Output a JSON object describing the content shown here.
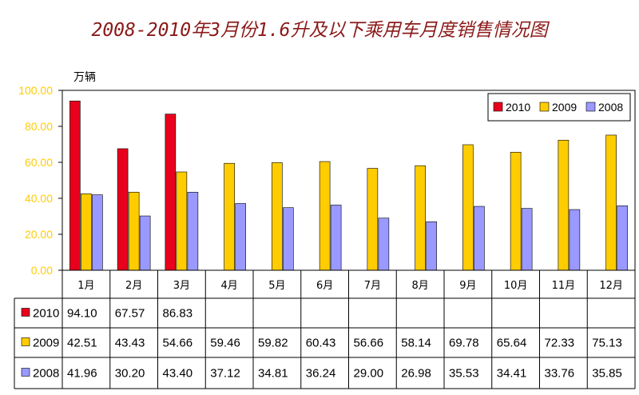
{
  "title": "2008-2010年3月份1.6升及以下乘用车月度销售情况图",
  "chart_data": {
    "type": "bar",
    "title": "2008-2010年3月份1.6升及以下乘用车月度销售情况图",
    "ylabel": "万辆",
    "xlabel": "",
    "ylim": [
      0,
      100
    ],
    "yticks": [
      "0.00",
      "20.00",
      "40.00",
      "60.00",
      "80.00",
      "100.00"
    ],
    "grid": false,
    "legend_position": "top-right",
    "categories": [
      "1月",
      "2月",
      "3月",
      "4月",
      "5月",
      "6月",
      "7月",
      "8月",
      "9月",
      "10月",
      "11月",
      "12月"
    ],
    "series": [
      {
        "name": "2010",
        "color": "#E8001C",
        "values": [
          94.1,
          67.57,
          86.83,
          null,
          null,
          null,
          null,
          null,
          null,
          null,
          null,
          null
        ],
        "labels": [
          "94.10",
          "67.57",
          "86.83",
          "",
          "",
          "",
          "",
          "",
          "",
          "",
          "",
          ""
        ]
      },
      {
        "name": "2009",
        "color": "#FFCC00",
        "values": [
          42.51,
          43.43,
          54.66,
          59.46,
          59.82,
          60.43,
          56.66,
          58.14,
          69.78,
          65.64,
          72.33,
          75.13
        ],
        "labels": [
          "42.51",
          "43.43",
          "54.66",
          "59.46",
          "59.82",
          "60.43",
          "56.66",
          "58.14",
          "69.78",
          "65.64",
          "72.33",
          "75.13"
        ]
      },
      {
        "name": "2008",
        "color": "#9999FF",
        "values": [
          41.96,
          30.2,
          43.4,
          37.12,
          34.81,
          36.24,
          29.0,
          26.98,
          35.53,
          34.41,
          33.76,
          35.85
        ],
        "labels": [
          "41.96",
          "30.20",
          "43.40",
          "37.12",
          "34.81",
          "36.24",
          "29.00",
          "26.98",
          "35.53",
          "34.41",
          "33.76",
          "35.85"
        ]
      }
    ]
  }
}
